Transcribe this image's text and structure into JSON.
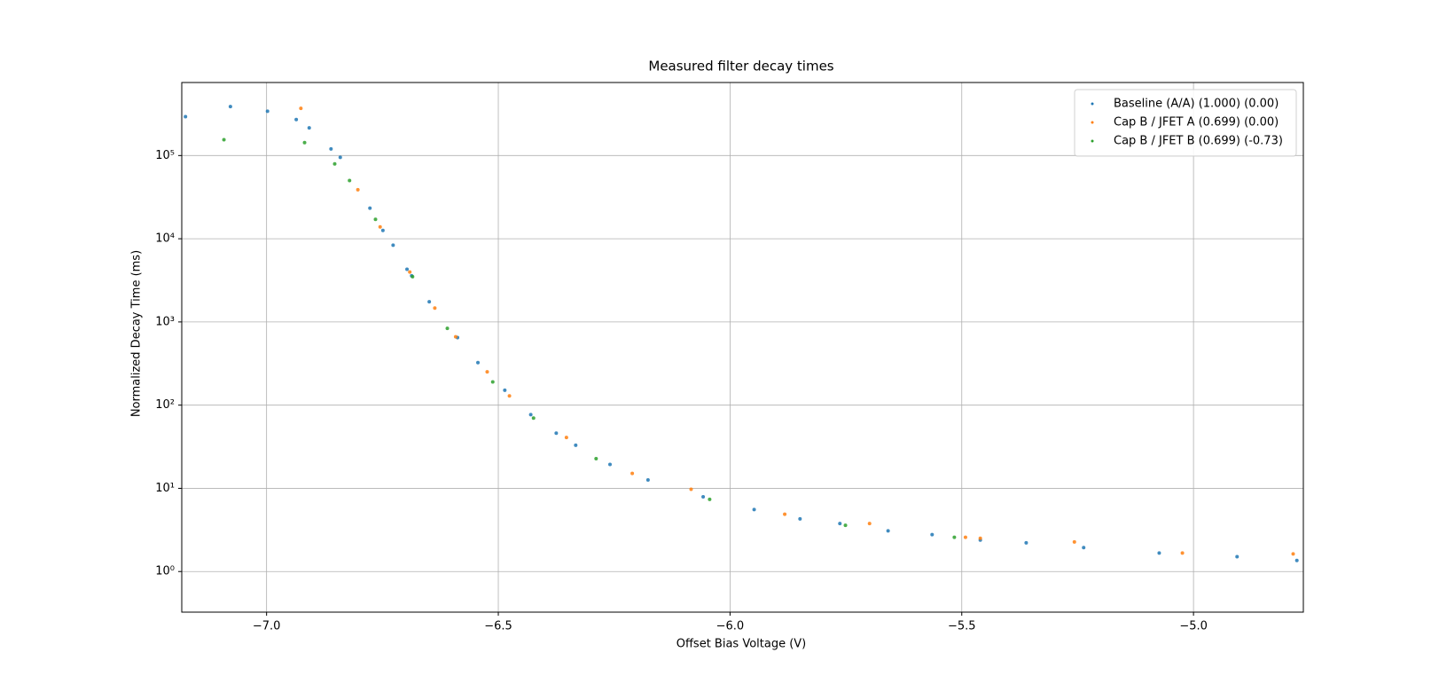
{
  "chart_data": {
    "type": "scatter",
    "title": "Measured filter decay times",
    "x_label": "Offset Bias Voltage (V)",
    "y_label": "Normalized Decay Time (ms)",
    "log_y": true,
    "grid": true,
    "legend": "upper right",
    "xlim": [
      -7.183,
      -4.763
    ],
    "ylim": [
      0.325,
      755000
    ],
    "xticks": [
      {
        "value": -7.0,
        "label": "−7.0"
      },
      {
        "value": -6.5,
        "label": "−6.5"
      },
      {
        "value": -6.0,
        "label": "−6.0"
      },
      {
        "value": -5.5,
        "label": "−5.5"
      },
      {
        "value": -5.0,
        "label": "−5.0"
      }
    ],
    "yticks": [
      {
        "value": 1,
        "label": "10⁰"
      },
      {
        "value": 10,
        "label": "10¹"
      },
      {
        "value": 100,
        "label": "10²"
      },
      {
        "value": 1000,
        "label": "10³"
      },
      {
        "value": 10000,
        "label": "10⁴"
      },
      {
        "value": 100000,
        "label": "10⁵"
      }
    ],
    "series": [
      {
        "name": "Baseline (A/A) (1.000) (0.00)",
        "color": "#1f77b4",
        "x": [
          -7.175,
          -7.078,
          -6.998,
          -6.936,
          -6.908,
          -6.861,
          -6.841,
          -6.777,
          -6.749,
          -6.727,
          -6.697,
          -6.687,
          -6.649,
          -6.588,
          -6.544,
          -6.486,
          -6.43,
          -6.375,
          -6.333,
          -6.259,
          -6.177,
          -6.058,
          -5.948,
          -5.849,
          -5.763,
          -5.659,
          -5.564,
          -5.46,
          -5.361,
          -5.237,
          -5.074,
          -4.906,
          -4.777
        ],
        "values": [
          293000,
          388000,
          341000,
          271000,
          215000,
          120000,
          95000,
          23300,
          12600,
          8360,
          4300,
          3590,
          1750,
          648,
          324,
          151,
          77,
          46,
          33,
          19.4,
          12.6,
          7.9,
          5.55,
          4.3,
          3.78,
          3.08,
          2.78,
          2.39,
          2.21,
          1.94,
          1.67,
          1.51,
          1.36
        ]
      },
      {
        "name": "Cap B / JFET A (0.699) (0.00)",
        "color": "#ff7f0e",
        "x": [
          -6.926,
          -6.803,
          -6.755,
          -6.691,
          -6.637,
          -6.592,
          -6.524,
          -6.476,
          -6.353,
          -6.211,
          -6.084,
          -5.882,
          -5.699,
          -5.492,
          -5.46,
          -5.257,
          -5.024,
          -4.785
        ],
        "values": [
          369000,
          38800,
          13900,
          3980,
          1470,
          664,
          251,
          129,
          40.8,
          15.1,
          9.75,
          4.89,
          3.78,
          2.58,
          2.51,
          2.27,
          1.67,
          1.63
        ]
      },
      {
        "name": "Cap B / JFET B (0.699) (-0.73)",
        "color": "#2ca02c",
        "x": [
          -7.092,
          -6.918,
          -6.853,
          -6.821,
          -6.765,
          -6.685,
          -6.61,
          -6.512,
          -6.424,
          -6.289,
          -6.044,
          -5.751,
          -5.516
        ],
        "values": [
          155000,
          143000,
          79400,
          50100,
          17100,
          3500,
          836,
          190,
          69.8,
          22.7,
          7.36,
          3.59,
          2.58
        ]
      }
    ]
  }
}
